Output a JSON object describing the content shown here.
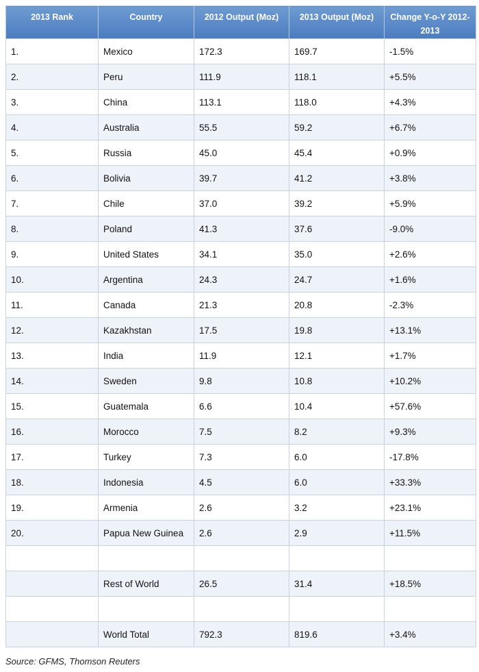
{
  "table": {
    "header": [
      "2013 Rank",
      "Country",
      "2012 Output (Moz)",
      "2013 Output (Moz)",
      "Change Y-o-Y 2012-2013"
    ],
    "rows": [
      [
        "1.",
        "Mexico",
        "172.3",
        "169.7",
        "-1.5%"
      ],
      [
        "2.",
        "Peru",
        "111.9",
        "118.1",
        "+5.5%"
      ],
      [
        "3.",
        "China",
        "113.1",
        "118.0",
        "+4.3%"
      ],
      [
        "4.",
        "Australia",
        "55.5",
        "59.2",
        "+6.7%"
      ],
      [
        "5.",
        "Russia",
        "45.0",
        "45.4",
        "+0.9%"
      ],
      [
        "6.",
        "Bolivia",
        "39.7",
        "41.2",
        "+3.8%"
      ],
      [
        "7.",
        "Chile",
        "37.0",
        "39.2",
        "+5.9%"
      ],
      [
        "8.",
        "Poland",
        "41.3",
        "37.6",
        "-9.0%"
      ],
      [
        "9.",
        "United States",
        "34.1",
        "35.0",
        "+2.6%"
      ],
      [
        "10.",
        "Argentina",
        "24.3",
        "24.7",
        "+1.6%"
      ],
      [
        "11.",
        "Canada",
        "21.3",
        "20.8",
        "-2.3%"
      ],
      [
        "12.",
        "Kazakhstan",
        "17.5",
        "19.8",
        "+13.1%"
      ],
      [
        "13.",
        "India",
        "11.9",
        "12.1",
        "+1.7%"
      ],
      [
        "14.",
        "Sweden",
        "9.8",
        "10.8",
        "+10.2%"
      ],
      [
        "15.",
        "Guatemala",
        "6.6",
        "10.4",
        "+57.6%"
      ],
      [
        "16.",
        "Morocco",
        "7.5",
        "8.2",
        "+9.3%"
      ],
      [
        "17.",
        "Turkey",
        "7.3",
        "6.0",
        "-17.8%"
      ],
      [
        "18.",
        "Indonesia",
        "4.5",
        "6.0",
        "+33.3%"
      ],
      [
        "19.",
        "Armenia",
        "2.6",
        "3.2",
        "+23.1%"
      ],
      [
        "20.",
        "Papua New Guinea",
        "2.6",
        "2.9",
        "+11.5%"
      ]
    ],
    "summary_rows": [
      [
        "Rest of World",
        "26.5",
        "31.4",
        "+18.5%"
      ],
      [
        "World Total",
        "792.3",
        "819.6",
        "+3.4%"
      ]
    ]
  },
  "source": "Source: GFMS, Thomson Reuters"
}
